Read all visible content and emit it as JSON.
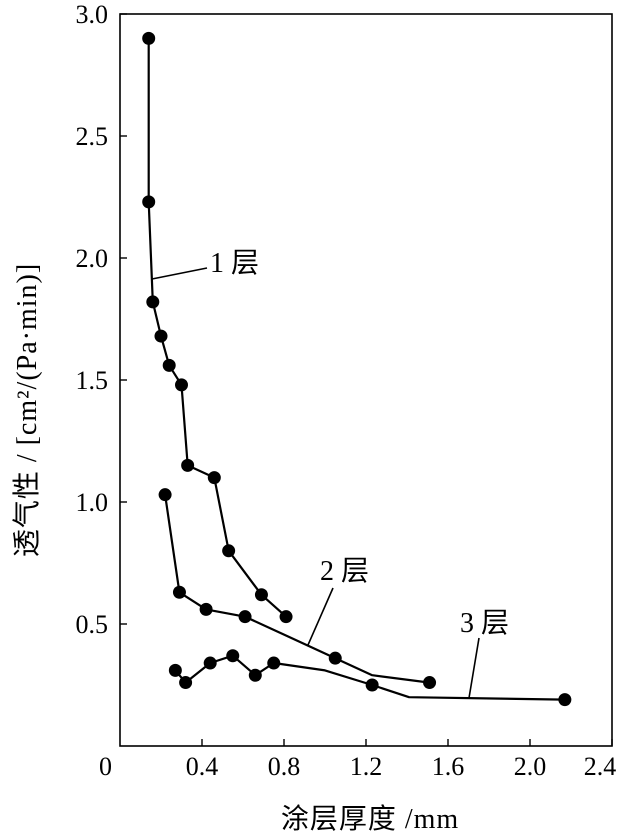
{
  "chart_data": {
    "type": "line",
    "xlabel": "涂层厚度 /mm",
    "ylabel": "透气性 / [cm²/(Pa·min)]",
    "xlim": [
      0,
      2.4
    ],
    "ylim": [
      0,
      3.0
    ],
    "origin_label": "0",
    "xticks": [
      0.4,
      0.8,
      1.2,
      1.6,
      2.0,
      2.4
    ],
    "xtick_labels": [
      "0.4",
      "0.8",
      "1.2",
      "1.6",
      "2.0",
      "2.4"
    ],
    "yticks": [
      0.5,
      1.0,
      1.5,
      2.0,
      2.5,
      3.0
    ],
    "ytick_labels": [
      "0.5",
      "1.0",
      "1.5",
      "2.0",
      "2.5",
      "3.0"
    ],
    "grid": false,
    "series": [
      {
        "name": "1 层",
        "x": [
          0.14,
          0.14,
          0.16,
          0.2,
          0.24,
          0.3,
          0.33,
          0.46,
          0.53,
          0.69,
          0.81
        ],
        "y": [
          2.9,
          2.23,
          1.82,
          1.68,
          1.56,
          1.48,
          1.15,
          1.1,
          0.8,
          0.62,
          0.53
        ]
      },
      {
        "name": "2 层",
        "x": [
          0.22,
          0.29,
          0.42,
          0.61,
          1.05,
          1.23,
          1.51
        ],
        "y": [
          1.03,
          0.63,
          0.56,
          0.53,
          0.36,
          0.29,
          0.26
        ],
        "markers": [
          true,
          true,
          true,
          true,
          true,
          false,
          true
        ]
      },
      {
        "name": "3 层",
        "x": [
          0.27,
          0.32,
          0.44,
          0.55,
          0.66,
          0.75,
          1.0,
          1.23,
          1.41,
          2.17
        ],
        "y": [
          0.31,
          0.26,
          0.34,
          0.37,
          0.29,
          0.34,
          0.31,
          0.25,
          0.2,
          0.19
        ],
        "markers": [
          true,
          true,
          true,
          true,
          true,
          true,
          false,
          true,
          false,
          true
        ]
      }
    ]
  }
}
